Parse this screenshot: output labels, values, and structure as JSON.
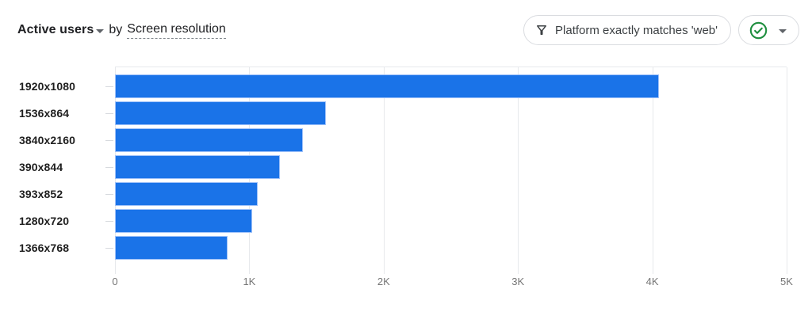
{
  "header": {
    "metric_label": "Active users",
    "connector": "by",
    "dimension_label": "Screen resolution",
    "filter_chip": {
      "icon": "filter-funnel-icon",
      "label": "Platform exactly matches 'web'"
    },
    "status_chip": {
      "icon": "green-check-circle-icon",
      "caret": "dropdown-caret-icon"
    }
  },
  "colors": {
    "bar": "#1a73e8",
    "bar_border": "#9ec1f9",
    "gridline": "#e7e9ec",
    "title_text": "#202124",
    "category_label": "#1f1f1f",
    "axis_label": "#757575",
    "chip_border": "#dadce0",
    "chip_text": "#3c4043",
    "green_check": "#1e8e3e",
    "caret": "#5f6368"
  },
  "chart_data": {
    "type": "bar",
    "orientation": "horizontal",
    "title": "Active users by Screen resolution",
    "xlabel": "Active users",
    "ylabel": "Screen resolution",
    "categories": [
      "1920x1080",
      "1536x864",
      "3840x2160",
      "390x844",
      "393x852",
      "1280x720",
      "1366x768"
    ],
    "values": [
      4050,
      1570,
      1400,
      1230,
      1060,
      1020,
      840
    ],
    "xlim": [
      0,
      5000
    ],
    "x_ticks": [
      {
        "value": 0,
        "label": "0"
      },
      {
        "value": 1000,
        "label": "1K"
      },
      {
        "value": 2000,
        "label": "2K"
      },
      {
        "value": 3000,
        "label": "3K"
      },
      {
        "value": 4000,
        "label": "4K"
      },
      {
        "value": 5000,
        "label": "5K"
      }
    ],
    "grid": "vertical",
    "legend": false
  }
}
